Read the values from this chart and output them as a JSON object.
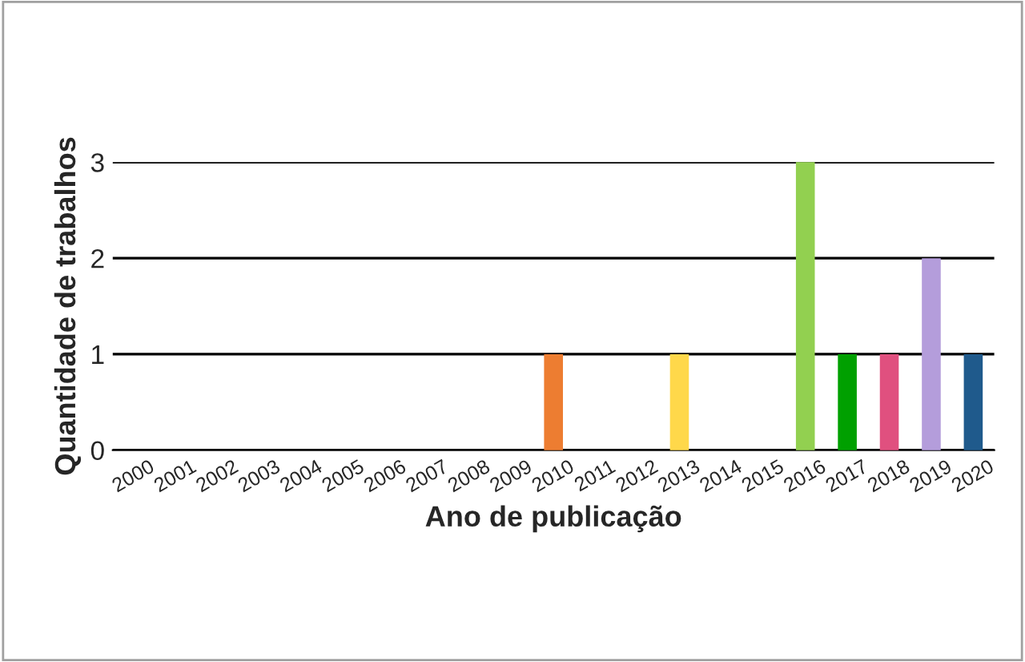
{
  "chart_data": {
    "type": "bar",
    "xlabel": "Ano de publicação",
    "ylabel": "Quantidade de trabalhos",
    "categories": [
      "2000",
      "2001",
      "2002",
      "2003",
      "2004",
      "2005",
      "2006",
      "2007",
      "2008",
      "2009",
      "2010",
      "2011",
      "2012",
      "2013",
      "2014",
      "2015",
      "2016",
      "2017",
      "2018",
      "2019",
      "2020"
    ],
    "values": [
      0,
      0,
      0,
      0,
      0,
      0,
      0,
      0,
      0,
      0,
      1,
      0,
      0,
      1,
      0,
      0,
      3,
      1,
      1,
      2,
      1
    ],
    "colors": [
      "#4472c4",
      "#4472c4",
      "#4472c4",
      "#4472c4",
      "#4472c4",
      "#4472c4",
      "#4472c4",
      "#4472c4",
      "#4472c4",
      "#4472c4",
      "#ed7d31",
      "#4472c4",
      "#4472c4",
      "#ffd84a",
      "#4472c4",
      "#4472c4",
      "#92d050",
      "#00a000",
      "#e0507f",
      "#b49ddb",
      "#1f5a8c"
    ],
    "ylim": [
      0,
      3
    ],
    "yticks": [
      0,
      1,
      2,
      3
    ],
    "grid": "y"
  }
}
